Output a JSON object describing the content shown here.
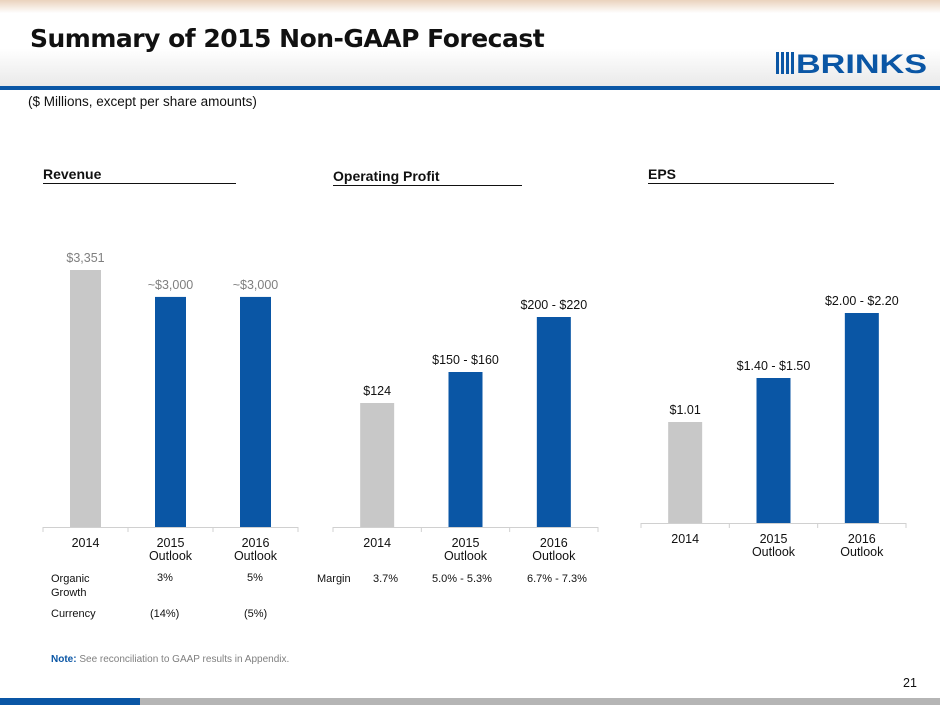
{
  "header": {
    "title": "Summary of 2015 Non-GAAP Forecast",
    "subtitle": "($ Millions, except per share amounts)",
    "logo_text": "BRINKS"
  },
  "colors": {
    "actual": "#c8c8c8",
    "outlook": "#0a56a5",
    "accent": "#0a56a5"
  },
  "chart_data": [
    {
      "type": "bar",
      "title": "Revenue",
      "categories": [
        "2014",
        "2015 Outlook",
        "2016 Outlook"
      ],
      "category_lines": [
        [
          "2014"
        ],
        [
          "2015",
          "Outlook"
        ],
        [
          "2016",
          "Outlook"
        ]
      ],
      "values": [
        3351,
        3000,
        3000
      ],
      "data_labels": [
        "$3,351",
        "~$3,000",
        "~$3,000"
      ],
      "ylim": [
        0,
        3351
      ]
    },
    {
      "type": "bar",
      "title": "Operating Profit",
      "categories": [
        "2014",
        "2015 Outlook",
        "2016 Outlook"
      ],
      "category_lines": [
        [
          "2014"
        ],
        [
          "2015",
          "Outlook"
        ],
        [
          "2016",
          "Outlook"
        ]
      ],
      "values": [
        124,
        155,
        210
      ],
      "data_labels": [
        "$124",
        "$150 - $160",
        "$200 - $220"
      ],
      "ylim": [
        0,
        265
      ]
    },
    {
      "type": "bar",
      "title": "EPS",
      "categories": [
        "2014",
        "2015 Outlook",
        "2016 Outlook"
      ],
      "category_lines": [
        [
          "2014"
        ],
        [
          "2015",
          "Outlook"
        ],
        [
          "2016",
          "Outlook"
        ]
      ],
      "values": [
        1.01,
        1.45,
        2.1
      ],
      "data_labels": [
        "$1.01",
        "$1.40 - $1.50",
        "$2.00 - $2.20"
      ],
      "ylim": [
        0,
        2.65
      ]
    }
  ],
  "revenue_table": {
    "rows": [
      {
        "label": "Organic",
        "label2": "Growth",
        "y2015": "3%",
        "y2016": "5%"
      },
      {
        "label": "Currency",
        "label2": "",
        "y2015": "(14%)",
        "y2016": "(5%)"
      }
    ]
  },
  "op_table": {
    "label": "Margin",
    "v2014": "3.7%",
    "v2015": "5.0% - 5.3%",
    "v2016": "6.7% - 7.3%"
  },
  "footer": {
    "note_bold": "Note:",
    "note_text": " See reconciliation to GAAP results in Appendix.",
    "page_number": "21"
  }
}
